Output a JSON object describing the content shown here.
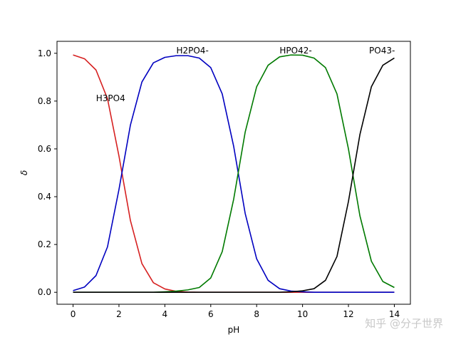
{
  "chart_data": {
    "type": "line",
    "title": "",
    "xlabel": "pH",
    "ylabel": "δ",
    "xlim": [
      -0.7,
      14.7
    ],
    "ylim": [
      -0.05,
      1.05
    ],
    "xticks": [
      0,
      2,
      4,
      6,
      8,
      10,
      12,
      14
    ],
    "xtick_labels": [
      "0",
      "2",
      "4",
      "6",
      "8",
      "10",
      "12",
      "14"
    ],
    "yticks": [
      0.0,
      0.2,
      0.4,
      0.6,
      0.8,
      1.0
    ],
    "ytick_labels": [
      "0.0",
      "0.2",
      "0.4",
      "0.6",
      "0.8",
      "1.0"
    ],
    "grid": false,
    "x": [
      0,
      0.5,
      1,
      1.5,
      2,
      2.5,
      3,
      3.5,
      4,
      4.5,
      5,
      5.5,
      6,
      6.5,
      7,
      7.5,
      8,
      8.5,
      9,
      9.5,
      10,
      10.5,
      11,
      11.5,
      12,
      12.5,
      13,
      13.5,
      14
    ],
    "series": [
      {
        "color": "#d62020",
        "values": [
          0.993,
          0.977,
          0.93,
          0.81,
          0.57,
          0.3,
          0.12,
          0.04,
          0.014,
          0.004,
          0.001,
          0,
          0,
          0,
          0,
          0,
          0,
          0,
          0,
          0,
          0,
          0,
          0,
          0,
          0,
          0,
          0,
          0,
          0
        ]
      },
      {
        "color": "#0000c0",
        "values": [
          0.007,
          0.022,
          0.07,
          0.19,
          0.43,
          0.7,
          0.88,
          0.96,
          0.983,
          0.99,
          0.99,
          0.98,
          0.94,
          0.83,
          0.61,
          0.33,
          0.14,
          0.05,
          0.015,
          0.005,
          0.002,
          0,
          0,
          0,
          0,
          0,
          0,
          0,
          0
        ]
      },
      {
        "color": "#007a00",
        "values": [
          0,
          0,
          0,
          0,
          0,
          0,
          0,
          0,
          0.002,
          0.005,
          0.01,
          0.02,
          0.06,
          0.17,
          0.39,
          0.67,
          0.86,
          0.95,
          0.985,
          0.993,
          0.992,
          0.98,
          0.94,
          0.83,
          0.6,
          0.32,
          0.13,
          0.045,
          0.02
        ]
      },
      {
        "color": "#000000",
        "values": [
          0,
          0,
          0,
          0,
          0,
          0,
          0,
          0,
          0,
          0,
          0,
          0,
          0,
          0,
          0,
          0,
          0,
          0,
          0,
          0.002,
          0.006,
          0.015,
          0.05,
          0.15,
          0.38,
          0.66,
          0.86,
          0.95,
          0.98
        ]
      }
    ],
    "annotations": [
      {
        "text": "H3PO4",
        "x": 1.0,
        "y": 0.8
      },
      {
        "text": "H2PO4-",
        "x": 4.5,
        "y": 1.0
      },
      {
        "text": "HPO42-",
        "x": 9.0,
        "y": 1.0
      },
      {
        "text": "PO43-",
        "x": 12.9,
        "y": 1.0
      }
    ]
  },
  "watermark": "知乎 @分子世界"
}
